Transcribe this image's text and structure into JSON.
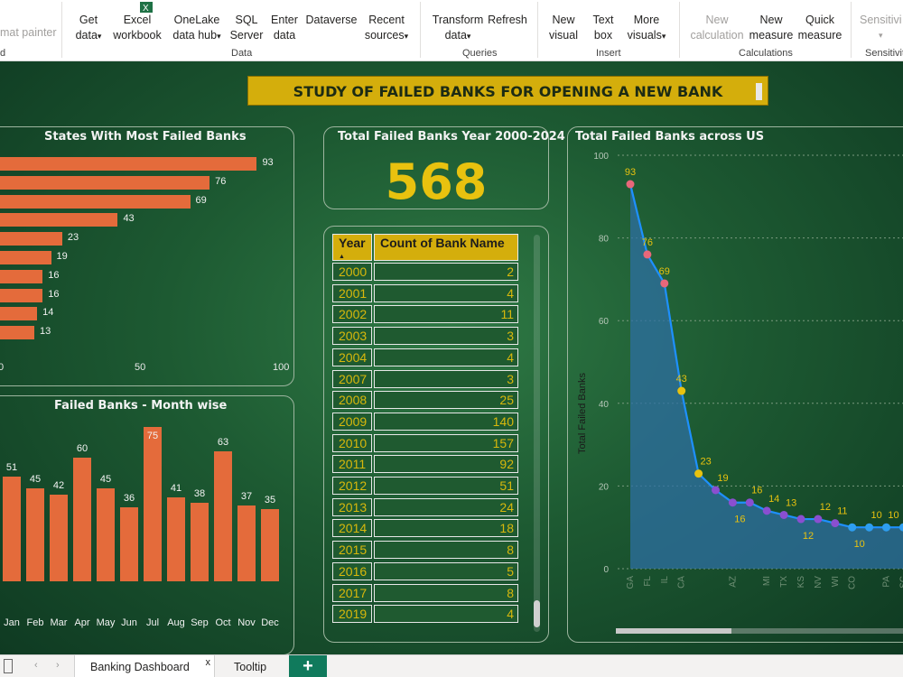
{
  "ribbon": {
    "format_painter": "mat painter",
    "clipboard_group_tail": "d",
    "get_data": [
      "Get",
      "data"
    ],
    "excel": [
      "Excel",
      "workbook"
    ],
    "onelake": [
      "OneLake",
      "data hub"
    ],
    "sql": [
      "SQL",
      "Server"
    ],
    "enter": [
      "Enter",
      "data"
    ],
    "dataverse": "Dataverse",
    "recent": [
      "Recent",
      "sources"
    ],
    "data_group": "Data",
    "transform": [
      "Transform",
      "data"
    ],
    "refresh": "Refresh",
    "queries_group": "Queries",
    "new_visual": [
      "New",
      "visual"
    ],
    "text_box": [
      "Text",
      "box"
    ],
    "more_visuals": [
      "More",
      "visuals"
    ],
    "insert_group": "Insert",
    "new_calc": [
      "New",
      "calculation"
    ],
    "new_measure": [
      "New",
      "measure"
    ],
    "quick_measure": [
      "Quick",
      "measure"
    ],
    "calc_group": "Calculations",
    "sensitivity": "Sensitivi",
    "sensitivity_group": "Sensitivit"
  },
  "dashboard": {
    "title": "STUDY OF FAILED BANKS FOR OPENING A NEW BANK",
    "kpi_title": "Total Failed Banks Year 2000-2024",
    "kpi_value": "568"
  },
  "states_chart": {
    "title": "States With Most Failed Banks",
    "values": [
      93,
      76,
      69,
      43,
      23,
      19,
      16,
      16,
      14,
      13
    ],
    "xticks": [
      "0",
      "50",
      "100"
    ]
  },
  "month_chart": {
    "title": "Failed Banks - Month wise",
    "months": [
      "Jan",
      "Feb",
      "Mar",
      "Apr",
      "May",
      "Jun",
      "Jul",
      "Aug",
      "Sep",
      "Oct",
      "Nov",
      "Dec"
    ],
    "values": [
      51,
      45,
      42,
      60,
      45,
      36,
      75,
      41,
      38,
      63,
      37,
      35
    ]
  },
  "table": {
    "headers": [
      "Year",
      "Count of Bank Name"
    ],
    "rows": [
      [
        "2000",
        "2"
      ],
      [
        "2001",
        "4"
      ],
      [
        "2002",
        "11"
      ],
      [
        "2003",
        "3"
      ],
      [
        "2004",
        "4"
      ],
      [
        "2007",
        "3"
      ],
      [
        "2008",
        "25"
      ],
      [
        "2009",
        "140"
      ],
      [
        "2010",
        "157"
      ],
      [
        "2011",
        "92"
      ],
      [
        "2012",
        "51"
      ],
      [
        "2013",
        "24"
      ],
      [
        "2014",
        "18"
      ],
      [
        "2015",
        "8"
      ],
      [
        "2016",
        "5"
      ],
      [
        "2017",
        "8"
      ],
      [
        "2019",
        "4"
      ]
    ]
  },
  "chart_data": {
    "type": "area",
    "title": "Total Failed Banks across US",
    "ylabel": "Total Failed Banks",
    "ylim": [
      0,
      100
    ],
    "yticks": [
      0,
      20,
      40,
      60,
      80,
      100
    ],
    "x": [
      "GA",
      "FL",
      "IL",
      "CA",
      "",
      "",
      "AZ",
      "",
      "MI",
      "TX",
      "KS",
      "NV",
      "WI",
      "CO",
      "",
      "PA",
      "SC"
    ],
    "values": [
      93,
      76,
      69,
      43,
      23,
      19,
      16,
      16,
      14,
      13,
      12,
      12,
      11,
      10,
      10,
      10,
      10
    ],
    "series_color": "#1e90ff",
    "grid": true
  },
  "tabs": {
    "active": "Banking Dashboard",
    "other": "Tooltip",
    "add": "+",
    "close": "x"
  }
}
